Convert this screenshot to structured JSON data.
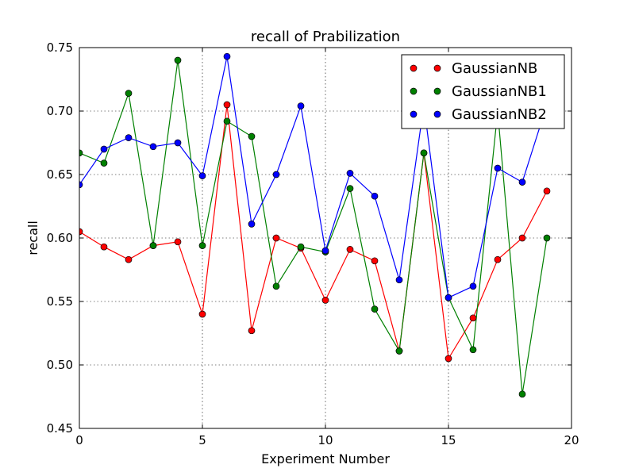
{
  "chart_data": {
    "type": "line",
    "title": "recall of Prabilization",
    "xlabel": "Experiment Number",
    "ylabel": "recall",
    "xlim": [
      0,
      20
    ],
    "ylim": [
      0.45,
      0.75
    ],
    "xticks": [
      "0",
      "5",
      "10",
      "15",
      "20"
    ],
    "yticks": [
      "0.45",
      "0.50",
      "0.55",
      "0.60",
      "0.65",
      "0.70",
      "0.75"
    ],
    "grid": true,
    "legend_position": "top-right",
    "x": [
      0,
      1,
      2,
      3,
      4,
      5,
      6,
      7,
      8,
      9,
      10,
      11,
      12,
      13,
      14,
      15,
      16,
      17,
      18,
      19
    ],
    "series": [
      {
        "name": "GaussianNB",
        "color": "#ff0000",
        "values": [
          0.605,
          0.593,
          0.583,
          0.594,
          0.597,
          0.54,
          0.705,
          0.527,
          0.6,
          0.592,
          0.551,
          0.591,
          0.582,
          0.511,
          0.667,
          0.505,
          0.537,
          0.583,
          0.6,
          0.637
        ]
      },
      {
        "name": "GaussianNB1",
        "color": "#008000",
        "values": [
          0.667,
          0.659,
          0.714,
          0.594,
          0.74,
          0.594,
          0.692,
          0.68,
          0.562,
          0.593,
          0.589,
          0.639,
          0.544,
          0.511,
          0.667,
          0.553,
          0.512,
          0.7,
          0.477,
          0.6
        ]
      },
      {
        "name": "GaussianNB2",
        "color": "#0000ff",
        "values": [
          0.642,
          0.67,
          0.679,
          0.672,
          0.675,
          0.649,
          0.743,
          0.611,
          0.65,
          0.704,
          0.59,
          0.651,
          0.633,
          0.567,
          0.705,
          0.553,
          0.562,
          0.655,
          0.644,
          0.705
        ]
      }
    ]
  }
}
